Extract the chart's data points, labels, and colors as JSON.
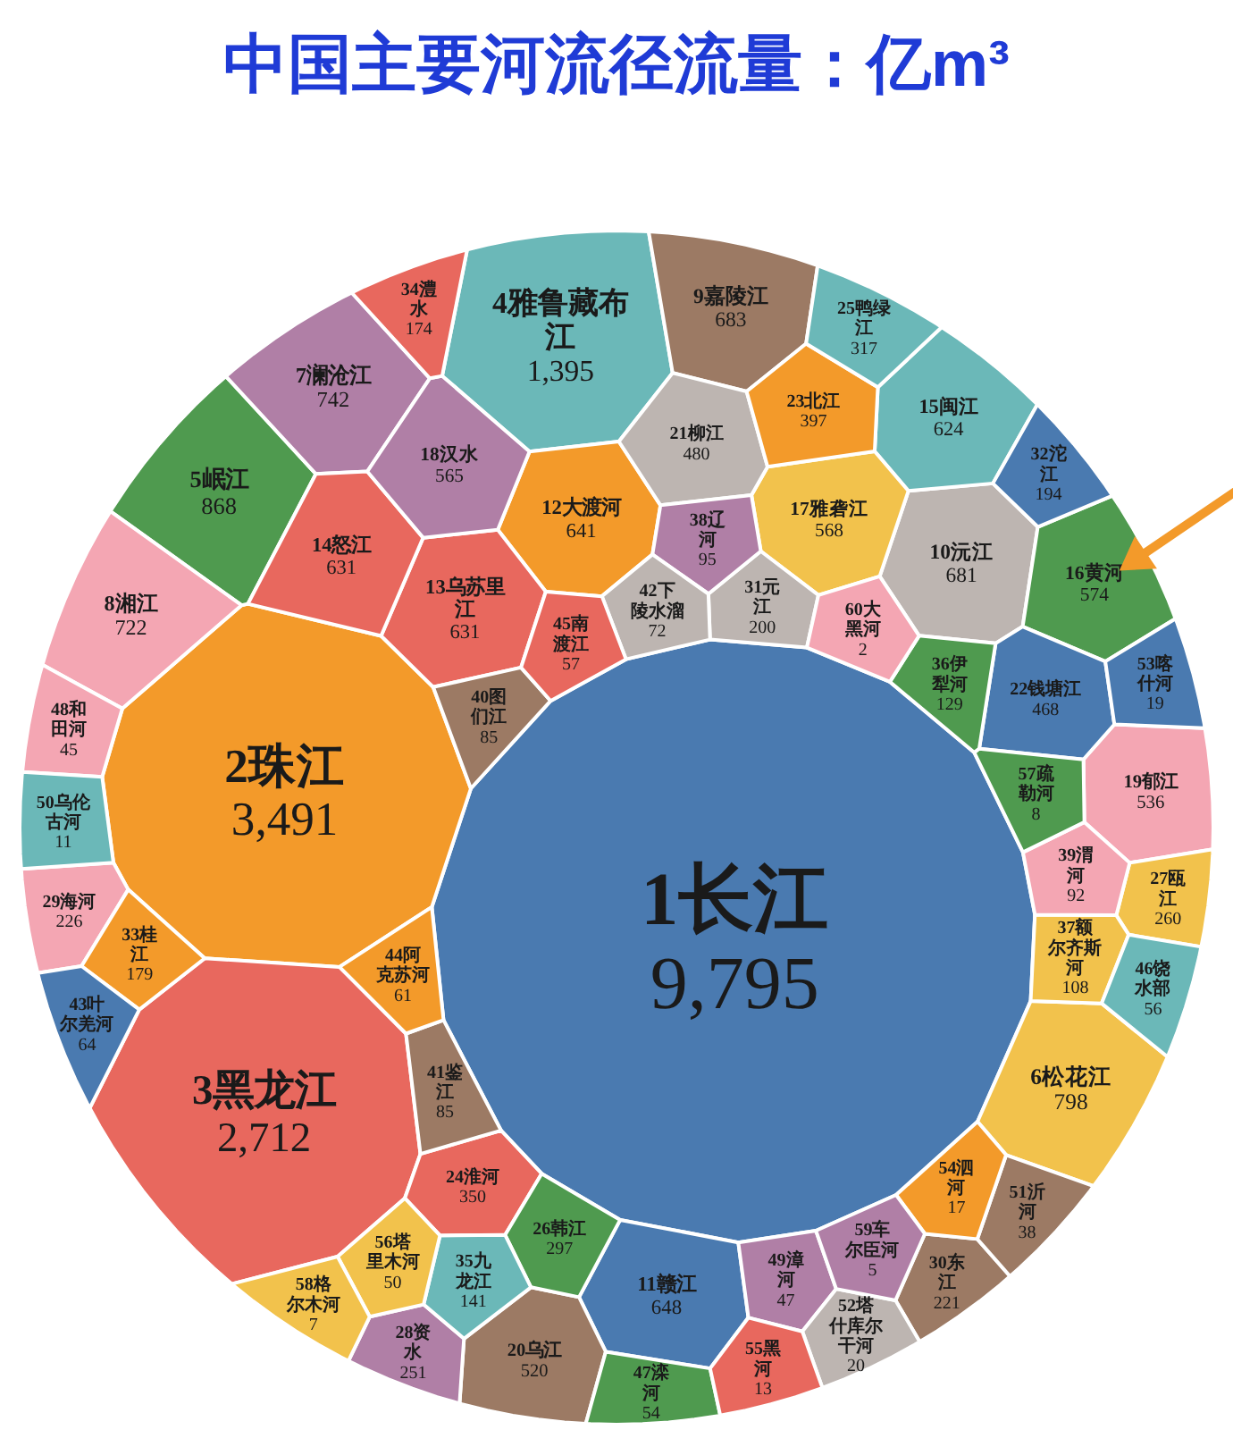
{
  "chart_data": {
    "type": "other",
    "title": "中国主要河流径流量：亿m³",
    "categories": [
      "1长江",
      "2珠江",
      "3黑龙江",
      "4雅鲁藏布江",
      "5岷江",
      "6松花江",
      "7澜沧江",
      "8湘江",
      "9嘉陵江",
      "10沅江",
      "11赣江",
      "12大渡河",
      "13乌苏里江",
      "14怒江",
      "15闽江",
      "16黄河",
      "17雅砻江",
      "18汉水",
      "19郁江",
      "20乌江",
      "21柳江",
      "22钱塘江",
      "23北江",
      "24淮河",
      "25鸭绿江",
      "26韩江",
      "27瓯江",
      "28资水",
      "29海河",
      "30东江",
      "31元江",
      "32沱江",
      "33桂江",
      "34澧水",
      "35九龙江",
      "36伊犁河",
      "37额尔齐斯河",
      "38辽河",
      "39渭河",
      "40图们江",
      "41鉴江",
      "42下陵水溜",
      "43叶尔羌河",
      "44阿克苏河",
      "45南渡江",
      "46饶水部",
      "47滦河",
      "48和田河",
      "49漳河",
      "50乌伦古河",
      "51沂河",
      "52塔什库尔干河",
      "53喀什河",
      "54泗河",
      "55黑河",
      "56塔里木河",
      "57疏勒河",
      "58格尔木河",
      "59车尔臣河",
      "60大黑河"
    ],
    "values": [
      9795,
      3491,
      2712,
      1395,
      868,
      798,
      742,
      722,
      683,
      681,
      648,
      641,
      631,
      631,
      624,
      574,
      568,
      565,
      536,
      520,
      480,
      468,
      397,
      350,
      317,
      297,
      260,
      251,
      226,
      221,
      200,
      194,
      179,
      174,
      141,
      129,
      108,
      95,
      92,
      85,
      85,
      72,
      64,
      61,
      57,
      56,
      54,
      45,
      47,
      11,
      38,
      20,
      19,
      17,
      13,
      50,
      8,
      7,
      5,
      2
    ],
    "value_labels": [
      "9,795",
      "3,491",
      "2,712",
      "1,395",
      "868",
      "798",
      "742",
      "722",
      "683",
      "681",
      "648",
      "641",
      "631",
      "631",
      "624",
      "574",
      "568",
      "565",
      "536",
      "520",
      "480",
      "468",
      "397",
      "350",
      "317",
      "297",
      "260",
      "251",
      "226",
      "221",
      "200",
      "194",
      "179",
      "174",
      "141",
      "129",
      "108",
      "95",
      "92",
      "85",
      "85",
      "72",
      "64",
      "61",
      "57",
      "56",
      "54",
      "45",
      "47",
      "11",
      "38",
      "20",
      "19",
      "17",
      "13",
      "50",
      "8",
      "7",
      "5",
      "2"
    ],
    "colors": [
      "#4a7ab0",
      "#f39a2a",
      "#e8685e",
      "#6bb8b8",
      "#4f9a4f",
      "#f2c24c",
      "#b07fa6",
      "#f4a6b3",
      "#9c7a64",
      "#bdb5b1",
      "#4a7ab0",
      "#f39a2a",
      "#e8685e",
      "#e8685e",
      "#6bb8b8",
      "#4f9a4f",
      "#f2c24c",
      "#b07fa6",
      "#f4a6b3",
      "#9c7a64",
      "#bdb5b1",
      "#4a7ab0",
      "#f39a2a",
      "#e8685e",
      "#6bb8b8",
      "#4f9a4f",
      "#f2c24c",
      "#b07fa6",
      "#f4a6b3",
      "#9c7a64",
      "#bdb5b1",
      "#4a7ab0",
      "#f39a2a",
      "#e8685e",
      "#6bb8b8",
      "#4f9a4f",
      "#f2c24c",
      "#b07fa6",
      "#f4a6b3",
      "#9c7a64",
      "#9c7a64",
      "#bdb5b1",
      "#4a7ab0",
      "#f39a2a",
      "#e8685e",
      "#6bb8b8",
      "#4f9a4f",
      "#f4a6b3",
      "#b07fa6",
      "#6bb8b8",
      "#9c7a64",
      "#bdb5b1",
      "#4a7ab0",
      "#f39a2a",
      "#e8685e",
      "#f2c24c",
      "#4f9a4f",
      "#f2c24c",
      "#b07fa6",
      "#f4a6b3"
    ]
  }
}
